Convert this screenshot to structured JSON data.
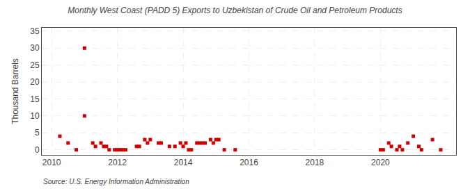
{
  "chart_data": {
    "type": "scatter",
    "title": "Monthly West Coast (PADD 5) Exports to Uzbekistan of Crude Oil and Petroleum Products",
    "ylabel": "Thousand Barrels",
    "source": "Source: U.S. Energy Information Administration",
    "color": "#cc0000",
    "marker": "square",
    "grid": true,
    "xlim": [
      2009.7,
      2022.3
    ],
    "ylim": [
      -1.5,
      36
    ],
    "xticks": [
      2010,
      2012,
      2014,
      2016,
      2018,
      2020
    ],
    "yticks": [
      0,
      5,
      10,
      15,
      20,
      25,
      30,
      35
    ],
    "x": [
      2010.25,
      2010.5,
      2010.75,
      2011.0,
      2011.0,
      2011.25,
      2011.333,
      2011.5,
      2011.583,
      2011.667,
      2011.75,
      2011.917,
      2012.0,
      2012.083,
      2012.167,
      2012.25,
      2012.583,
      2012.667,
      2012.833,
      2012.917,
      2013.0,
      2013.25,
      2013.333,
      2013.583,
      2013.75,
      2013.917,
      2014.0,
      2014.083,
      2014.167,
      2014.25,
      2014.417,
      2014.5,
      2014.583,
      2014.667,
      2014.833,
      2014.917,
      2015.0,
      2015.083,
      2015.25,
      2015.583,
      2020.0,
      2020.083,
      2020.25,
      2020.333,
      2020.5,
      2020.583,
      2020.667,
      2020.833,
      2021.0,
      2021.167,
      2021.25,
      2021.583,
      2021.833
    ],
    "values": [
      4,
      2,
      0,
      10,
      30,
      2,
      1,
      2,
      1,
      1,
      0,
      0,
      0,
      0,
      0,
      0,
      1,
      1,
      3,
      2,
      3,
      2,
      2,
      1,
      1,
      2,
      1,
      2,
      0,
      0,
      2,
      2,
      2,
      2,
      3,
      2,
      3,
      3,
      0,
      0,
      0,
      0,
      2,
      1,
      0,
      1,
      0,
      2,
      4,
      1,
      0,
      3,
      0
    ]
  }
}
